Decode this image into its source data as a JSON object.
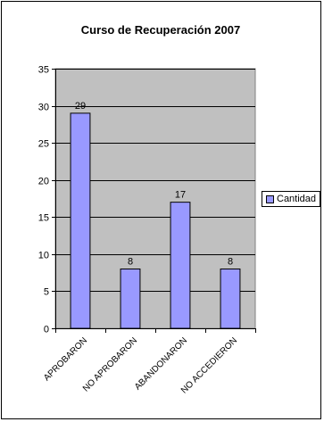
{
  "chart_data": {
    "type": "bar",
    "title": "Curso de Recuperación 2007",
    "categories": [
      "APROBARON",
      "NO APROBARON",
      "ABANDONARON",
      "NO ACCEDIERON"
    ],
    "series": [
      {
        "name": "Cantidad",
        "values": [
          29,
          8,
          17,
          8
        ]
      }
    ],
    "ylim": [
      0,
      35
    ],
    "yticks": [
      0,
      5,
      10,
      15,
      20,
      25,
      30,
      35
    ],
    "data_labels": [
      "29",
      "8",
      "17",
      "8"
    ],
    "grid": true,
    "legend_position": "right",
    "plot_background": "#c0c0c0",
    "bar_color": "#9999ff"
  }
}
